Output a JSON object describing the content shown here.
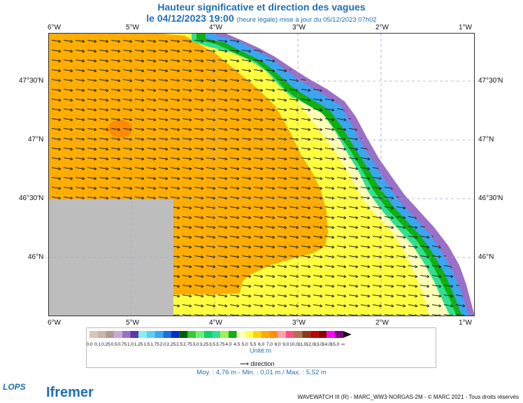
{
  "title_line1": "Hauteur significative et direction des vagues",
  "title_date": "le 04/12/2023 19:00",
  "title_update": "(heure légale) mise à jour du 05/12/2023 07h02",
  "axes": {
    "lon_labels": [
      "6°W",
      "5°W",
      "4°W",
      "3°W",
      "2°W",
      "1°W"
    ],
    "lat_labels": [
      "47°30'N",
      "47°N",
      "46°30'N",
      "46°N"
    ]
  },
  "legend": {
    "values": [
      "0,0",
      "0,1",
      "0,25",
      "0,5",
      "0,75",
      "1,0",
      "1,25",
      "1,5",
      "1,75",
      "2,0",
      "2,25",
      "2,5",
      "2,75",
      "3,0",
      "3,25",
      "3,5",
      "3,75",
      "4,0",
      "4,5",
      "5,0",
      "5,5",
      "6,0",
      "7,0",
      "8,0",
      "9,0",
      "10,0",
      "11,0",
      "12,0",
      "13,0",
      "14,0",
      "15,0",
      "∞"
    ],
    "colors": [
      "#d9c6ba",
      "#c9b6a6",
      "#b49a8a",
      "#c9a8d9",
      "#9a70c8",
      "#5a3aa8",
      "#84f0f0",
      "#5ad0f0",
      "#3aa6f0",
      "#1a70e0",
      "#0a2ad0",
      "#006000",
      "#38c838",
      "#70f070",
      "#10d070",
      "#30e090",
      "#a0f050",
      "#10b010",
      "#ffffc0",
      "#ffff50",
      "#ffd500",
      "#ffa800",
      "#ff8c00",
      "#ff9fb0",
      "#ff5080",
      "#b07050",
      "#8a3a1a",
      "#c00000",
      "#8a0000",
      "#ff00ff",
      "#800080"
    ],
    "unit": "Unité:m",
    "direction_label": "direction"
  },
  "stats": "Moy. : 4,76 m   -   Min. : 0,01 m / Max. : 5,52 m",
  "footer": "WAVEWATCH III (R) - MARC_WW3-NORGAS-2M - © MARC 2021 - Tous droits réservés",
  "logos": {
    "lops": "LOPS",
    "ifremer": "Ifremer"
  },
  "colors": {
    "title": "#1f6fb5",
    "land": "#ffffff",
    "nodata": "#bdbdbd",
    "orange": "#ffad00",
    "yellow": "#ffff40",
    "pale": "#ffffb8"
  }
}
